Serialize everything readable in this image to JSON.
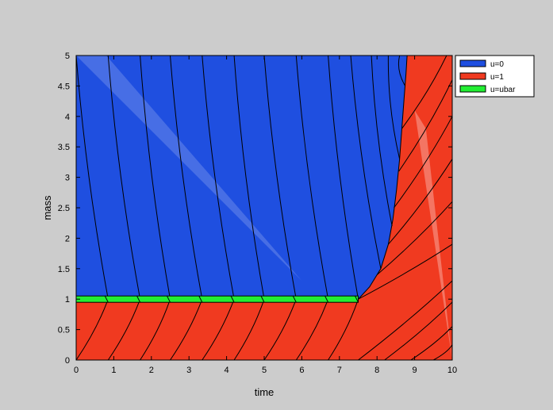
{
  "chart_data": {
    "type": "area",
    "title": "",
    "xlabel": "time",
    "ylabel": "mass",
    "xlim": [
      0,
      10
    ],
    "ylim": [
      0,
      5
    ],
    "xticks": [
      "0",
      "1",
      "2",
      "3",
      "4",
      "5",
      "6",
      "7",
      "8",
      "9",
      "10"
    ],
    "yticks": [
      "0",
      "0.5",
      "1",
      "1.5",
      "2",
      "2.5",
      "3",
      "3.5",
      "4",
      "4.5",
      "5"
    ],
    "grid": false,
    "legend_position": "outside-top-right",
    "legend": [
      {
        "label": "u=0",
        "color": "#1f4fe0"
      },
      {
        "label": "u=1",
        "color": "#f03a20"
      },
      {
        "label": "u=ubar",
        "color": "#22ee33"
      }
    ],
    "regions": {
      "u0_boundary": [
        [
          7.5,
          1.0
        ],
        [
          7.8,
          1.2
        ],
        [
          8.1,
          1.5
        ],
        [
          8.3,
          1.9
        ],
        [
          8.42,
          2.3
        ],
        [
          8.52,
          2.8
        ],
        [
          8.6,
          3.3
        ],
        [
          8.66,
          3.8
        ],
        [
          8.72,
          4.3
        ],
        [
          8.77,
          4.7
        ],
        [
          8.8,
          5.0
        ]
      ],
      "singular_arc": {
        "x": [
          0,
          7.5
        ],
        "y": 1.0
      }
    },
    "blue_trajectories": [
      {
        "x0": 0.0,
        "y0": 5.0,
        "x1": 0.85,
        "y1": 1.0
      },
      {
        "x0": 0.85,
        "y0": 5.0,
        "x1": 1.7,
        "y1": 1.0
      },
      {
        "x0": 1.7,
        "y0": 5.0,
        "x1": 2.5,
        "y1": 1.0
      },
      {
        "x0": 2.5,
        "y0": 5.0,
        "x1": 3.35,
        "y1": 1.0
      },
      {
        "x0": 3.35,
        "y0": 5.0,
        "x1": 4.2,
        "y1": 1.0
      },
      {
        "x0": 4.2,
        "y0": 5.0,
        "x1": 5.0,
        "y1": 1.0
      },
      {
        "x0": 5.0,
        "y0": 5.0,
        "x1": 5.85,
        "y1": 1.0
      },
      {
        "x0": 5.85,
        "y0": 5.0,
        "x1": 6.7,
        "y1": 1.0
      },
      {
        "x0": 6.7,
        "y0": 5.0,
        "x1": 7.5,
        "y1": 1.0
      },
      {
        "x0": 7.3,
        "y0": 5.0,
        "x1": 8.1,
        "y1": 1.5
      },
      {
        "x0": 7.85,
        "y0": 5.0,
        "x1": 8.4,
        "y1": 2.2
      },
      {
        "x0": 8.3,
        "y0": 5.0,
        "x1": 8.6,
        "y1": 3.3
      },
      {
        "x0": 8.6,
        "y0": 5.0,
        "x1": 8.75,
        "y1": 4.5
      }
    ],
    "red_trajectories": [
      {
        "x0": 0.0,
        "y0": 0.0,
        "x1": 0.85,
        "y1": 1.0
      },
      {
        "x0": 0.85,
        "y0": 0.0,
        "x1": 1.7,
        "y1": 1.0
      },
      {
        "x0": 1.7,
        "y0": 0.0,
        "x1": 2.5,
        "y1": 1.0
      },
      {
        "x0": 2.5,
        "y0": 0.0,
        "x1": 3.35,
        "y1": 1.0
      },
      {
        "x0": 3.35,
        "y0": 0.0,
        "x1": 4.2,
        "y1": 1.0
      },
      {
        "x0": 4.2,
        "y0": 0.0,
        "x1": 5.0,
        "y1": 1.0
      },
      {
        "x0": 5.0,
        "y0": 0.0,
        "x1": 5.85,
        "y1": 1.0
      },
      {
        "x0": 5.85,
        "y0": 0.0,
        "x1": 6.7,
        "y1": 1.0
      },
      {
        "x0": 6.7,
        "y0": 0.0,
        "x1": 7.5,
        "y1": 1.0
      },
      {
        "x0": 7.5,
        "y0": 0.0,
        "x1": 10.0,
        "y1": 1.3
      },
      {
        "x0": 8.2,
        "y0": 0.0,
        "x1": 10.0,
        "y1": 0.95
      },
      {
        "x0": 8.9,
        "y0": 0.0,
        "x1": 10.0,
        "y1": 0.55
      },
      {
        "x0": 9.5,
        "y0": 0.0,
        "x1": 10.0,
        "y1": 0.25
      },
      {
        "x0": 7.5,
        "y0": 1.0,
        "x1": 10.0,
        "y1": 1.9
      },
      {
        "x0": 8.0,
        "y0": 1.4,
        "x1": 10.0,
        "y1": 2.6
      },
      {
        "x0": 8.3,
        "y0": 1.9,
        "x1": 10.0,
        "y1": 3.3
      },
      {
        "x0": 8.45,
        "y0": 2.5,
        "x1": 10.0,
        "y1": 4.0
      },
      {
        "x0": 8.58,
        "y0": 3.1,
        "x1": 10.0,
        "y1": 4.6
      },
      {
        "x0": 8.66,
        "y0": 3.8,
        "x1": 9.85,
        "y1": 5.0
      }
    ]
  }
}
